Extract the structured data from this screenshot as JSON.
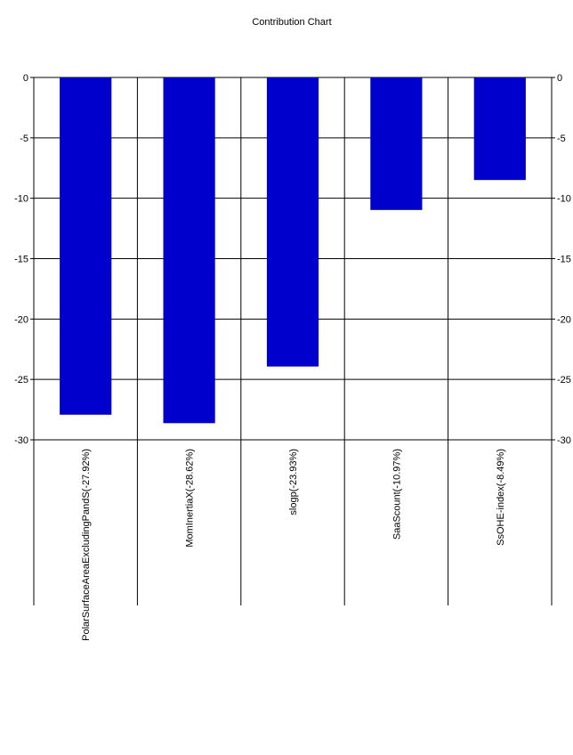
{
  "chart_data": {
    "type": "bar",
    "title": "Contribution Chart",
    "categories": [
      "PolarSurfaceAreaExcludingPandS(-27.92%)",
      "MomInertiaX(-28.62%)",
      "slogp(-23.93%)",
      "SaaScount(-10.97%)",
      "SsOHE-index(-8.49%)"
    ],
    "values": [
      -27.92,
      -28.62,
      -23.93,
      -10.97,
      -8.49
    ],
    "ylim": [
      -30,
      0
    ],
    "yticks": [
      0,
      -5,
      -10,
      -15,
      -20,
      -25,
      -30
    ],
    "grid": true,
    "bar_color": "#0000cc",
    "xlabel": "",
    "ylabel": ""
  }
}
